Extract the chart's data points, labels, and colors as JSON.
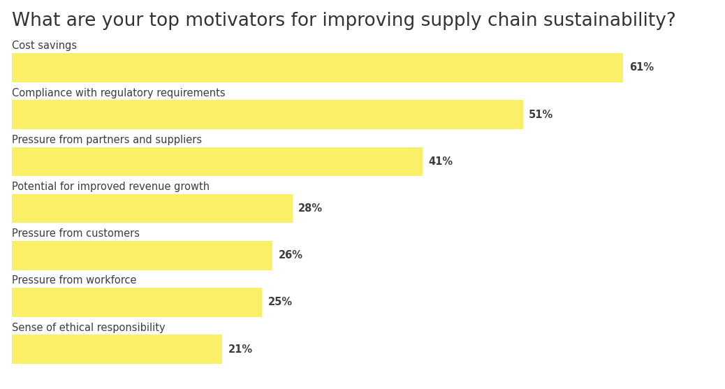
{
  "title": "What are your top motivators for improving supply chain sustainability?",
  "categories": [
    "Cost savings",
    "Compliance with regulatory requirements",
    "Pressure from partners and suppliers",
    "Potential for improved revenue growth",
    "Pressure from customers",
    "Pressure from workforce",
    "Sense of ethical responsibility"
  ],
  "values": [
    61,
    51,
    41,
    28,
    26,
    25,
    21
  ],
  "bar_color": "#FAF067",
  "label_color": "#3d3d3d",
  "title_color": "#333333",
  "background_color": "#ffffff",
  "title_fontsize": 19,
  "category_fontsize": 10.5,
  "value_fontsize": 10.5,
  "xlim": [
    0,
    70
  ],
  "bar_height": 0.62,
  "bar_gap": 1.0
}
